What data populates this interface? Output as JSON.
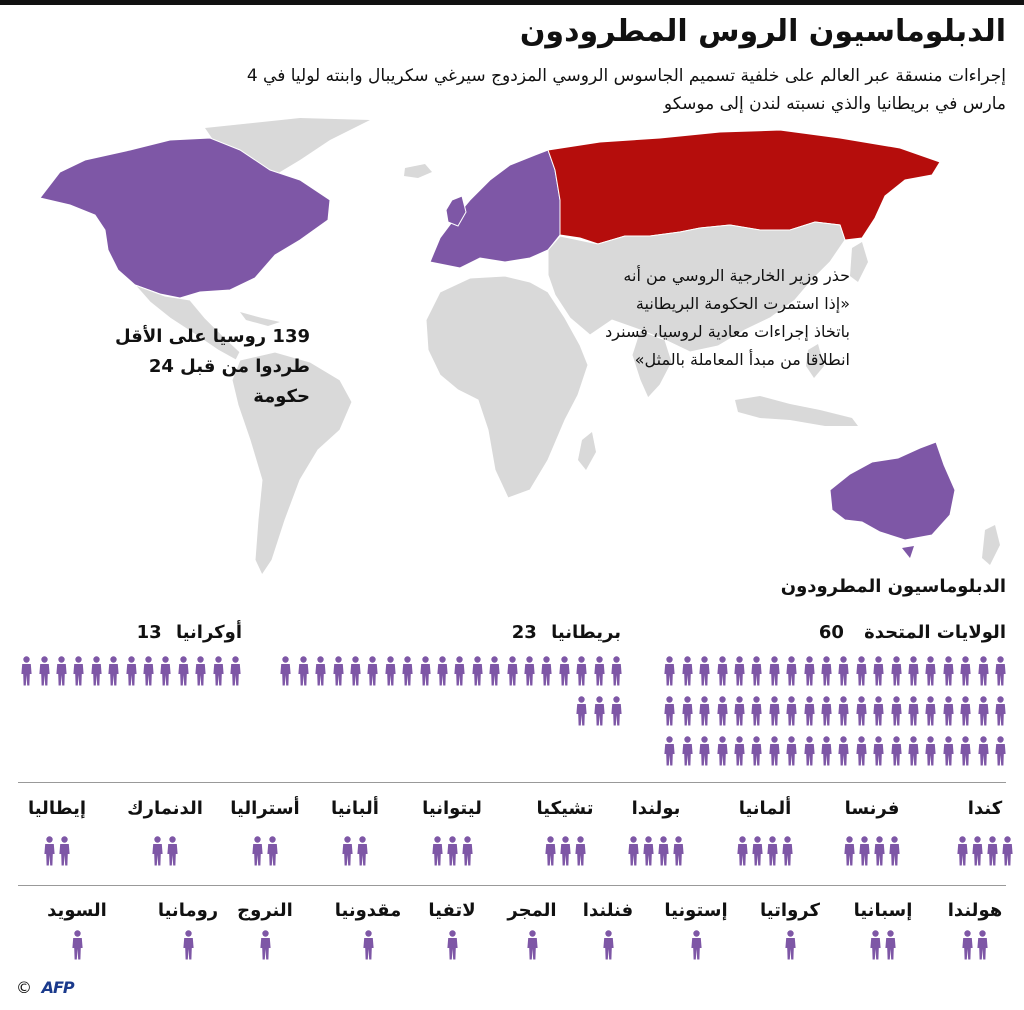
{
  "title": "الدبلوماسيون الروس المطرودون",
  "subtitle": "إجراءات منسقة عبر العالم على خلفية تسميم الجاسوس الروسي المزدوج سيرغي سكريبال وابنته لوليا في 4 مارس في بريطانيا والذي نسبته لندن إلى موسكو",
  "stat": {
    "line1": "139 روسيا على الأقل",
    "line2": "طردوا من قبل 24 حكومة"
  },
  "quote": "حذر وزير الخارجية الروسي من أنه «إذا استمرت الحكومة البريطانية باتخاذ إجراءات معادية لروسيا، فسنرد انطلاقا من مبدأ المعاملة بالمثل»",
  "colors": {
    "expelling": "#7e57a6",
    "russia": "#b50d0c",
    "land": "#d9d9d9",
    "person": "#7e57a6",
    "divider": "#999999"
  },
  "section_title": "الدبلوماسيون المطرودون",
  "major": [
    {
      "country": "الولايات المتحدة",
      "count": "60"
    },
    {
      "country": "بريطانيا",
      "count": "23"
    },
    {
      "country": "أوكرانيا",
      "count": "13"
    }
  ],
  "row1": [
    {
      "country": "كندا",
      "count": 4
    },
    {
      "country": "فرنسا",
      "count": 4
    },
    {
      "country": "ألمانيا",
      "count": 4
    },
    {
      "country": "بولندا",
      "count": 4
    },
    {
      "country": "تشيكيا",
      "count": 3
    },
    {
      "country": "ليتوانيا",
      "count": 3
    },
    {
      "country": "ألبانيا",
      "count": 2
    },
    {
      "country": "أستراليا",
      "count": 2
    },
    {
      "country": "الدنمارك",
      "count": 2
    },
    {
      "country": "إيطاليا",
      "count": 2
    }
  ],
  "row2": [
    {
      "country": "هولندا",
      "count": 2
    },
    {
      "country": "إسبانيا",
      "count": 2
    },
    {
      "country": "كرواتيا",
      "count": 1
    },
    {
      "country": "إستونيا",
      "count": 1
    },
    {
      "country": "فنلندا",
      "count": 1
    },
    {
      "country": "المجر",
      "count": 1
    },
    {
      "country": "لاتفيا",
      "count": 1
    },
    {
      "country": "مقدونيا",
      "count": 1
    },
    {
      "country": "النروج",
      "count": 1
    },
    {
      "country": "رومانيا",
      "count": 1
    },
    {
      "country": "السويد",
      "count": 1
    }
  ],
  "credit": {
    "copyright": "©",
    "agency": "AFP"
  }
}
